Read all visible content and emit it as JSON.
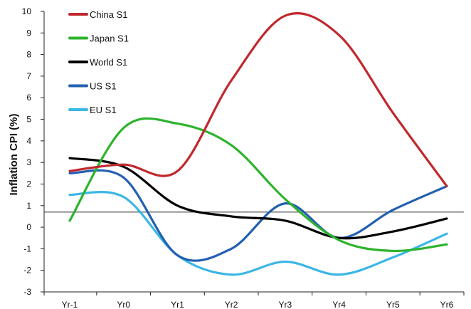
{
  "chart_data": {
    "type": "line",
    "ylabel": "Inflation CPI (%)",
    "xlabel": "",
    "categories": [
      "Yr-1",
      "Yr0",
      "Yr1",
      "Yr2",
      "Yr3",
      "Yr4",
      "Yr5",
      "Yr6"
    ],
    "ylim": [
      -3,
      10
    ],
    "yticks": [
      -3,
      -2,
      -1,
      0,
      1,
      2,
      3,
      4,
      5,
      6,
      7,
      8,
      9,
      10
    ],
    "reference_line": 0.7,
    "grid": false,
    "legend_position": "top-left",
    "series": [
      {
        "name": "China S1",
        "color": "#c0282d",
        "values": [
          2.6,
          2.9,
          2.6,
          6.8,
          9.8,
          8.9,
          5.3,
          1.9
        ]
      },
      {
        "name": "Japan S1",
        "color": "#2db32d",
        "values": [
          0.3,
          4.6,
          4.8,
          3.8,
          1.3,
          -0.6,
          -1.1,
          -0.8
        ]
      },
      {
        "name": "World S1",
        "color": "#000000",
        "values": [
          3.2,
          2.8,
          1.0,
          0.5,
          0.3,
          -0.5,
          -0.2,
          0.4
        ]
      },
      {
        "name": "US S1",
        "color": "#2360b0",
        "values": [
          2.5,
          2.3,
          -1.3,
          -1.0,
          1.1,
          -0.5,
          0.8,
          1.9
        ]
      },
      {
        "name": "EU S1",
        "color": "#3bb6e5",
        "values": [
          1.5,
          1.4,
          -1.3,
          -2.2,
          -1.6,
          -2.2,
          -1.4,
          -0.3
        ]
      }
    ]
  }
}
